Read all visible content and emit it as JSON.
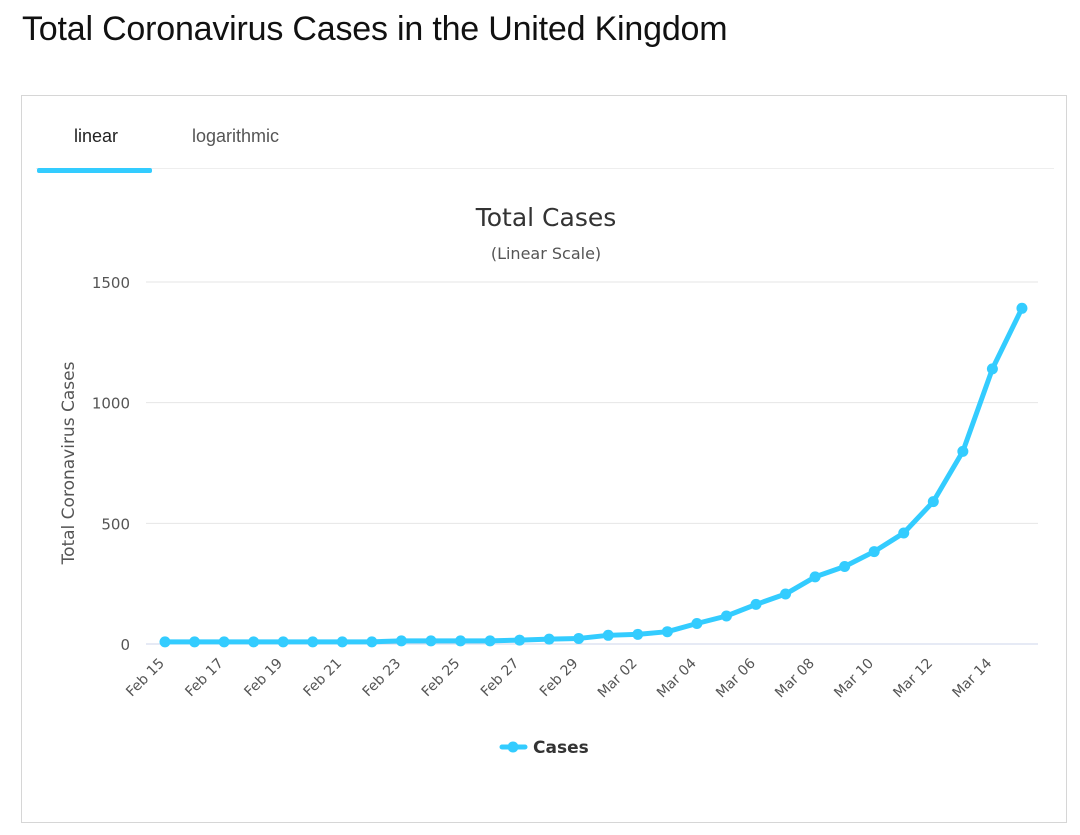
{
  "page": {
    "title": "Total Coronavirus Cases in the United Kingdom"
  },
  "tabs": [
    {
      "label": "linear",
      "active": true
    },
    {
      "label": "logarithmic",
      "active": false
    }
  ],
  "accent_color": "#33ccff",
  "chart_data": {
    "type": "line",
    "title": "Total Cases",
    "subtitle": "(Linear Scale)",
    "ylabel": "Total Coronavirus Cases",
    "xlabel": "",
    "ylim": [
      0,
      1500
    ],
    "yticks": [
      0,
      500,
      1000,
      1500
    ],
    "grid": true,
    "legend_position": "bottom-center",
    "x": [
      "Feb 15",
      "Feb 16",
      "Feb 17",
      "Feb 18",
      "Feb 19",
      "Feb 20",
      "Feb 21",
      "Feb 22",
      "Feb 23",
      "Feb 24",
      "Feb 25",
      "Feb 26",
      "Feb 27",
      "Feb 28",
      "Feb 29",
      "Mar 01",
      "Mar 02",
      "Mar 03",
      "Mar 04",
      "Mar 05",
      "Mar 06",
      "Mar 07",
      "Mar 08",
      "Mar 09",
      "Mar 10",
      "Mar 11",
      "Mar 12",
      "Mar 13",
      "Mar 14",
      "Mar 15"
    ],
    "xticks": [
      "Feb 15",
      "Feb 17",
      "Feb 19",
      "Feb 21",
      "Feb 23",
      "Feb 25",
      "Feb 27",
      "Feb 29",
      "Mar 02",
      "Mar 04",
      "Mar 06",
      "Mar 08",
      "Mar 10",
      "Mar 12",
      "Mar 14"
    ],
    "series": [
      {
        "name": "Cases",
        "color": "#33ccff",
        "values": [
          9,
          9,
          9,
          9,
          9,
          9,
          9,
          9,
          13,
          13,
          13,
          13,
          16,
          20,
          23,
          36,
          40,
          51,
          85,
          116,
          164,
          207,
          278,
          321,
          383,
          460,
          590,
          798,
          1140,
          1391
        ]
      }
    ]
  }
}
